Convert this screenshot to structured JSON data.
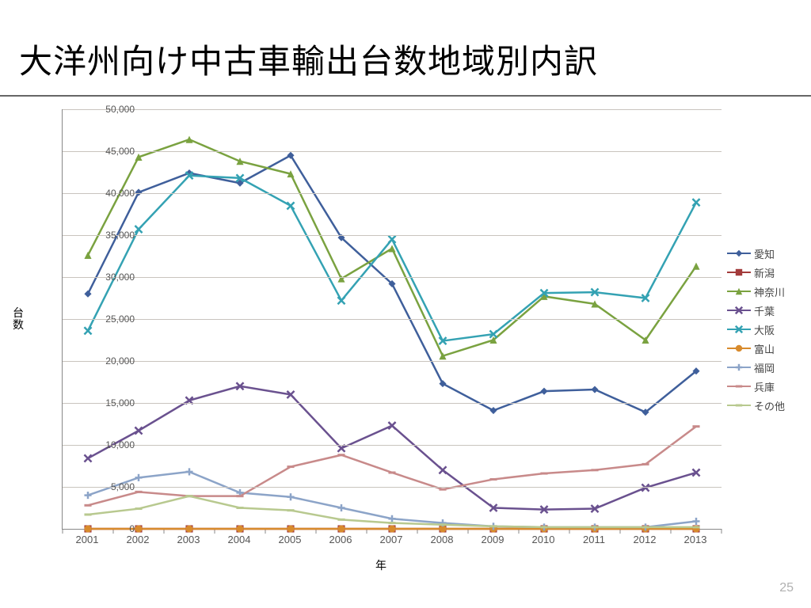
{
  "title": "大洋州向け中古車輸出台数地域別内訳",
  "page_number": "25",
  "chart": {
    "type": "line",
    "x_label": "年",
    "y_label": "台数",
    "background_color": "#ffffff",
    "grid_color": "#c9c4be",
    "axis_color": "#888888",
    "tick_font_color": "#555555",
    "title_fontsize": 42,
    "label_fontsize": 14,
    "tick_fontsize": 12,
    "line_width": 2.5,
    "marker_size": 7,
    "x_values": [
      "2001",
      "2002",
      "2003",
      "2004",
      "2005",
      "2006",
      "2007",
      "2008",
      "2009",
      "2010",
      "2011",
      "2012",
      "2013"
    ],
    "ylim": [
      0,
      50000
    ],
    "ytick_step": 5000,
    "series": [
      {
        "name": "愛知",
        "color": "#3f5f9b",
        "marker": "diamond",
        "y": [
          28000,
          40100,
          42400,
          41200,
          44500,
          34700,
          29200,
          17300,
          14100,
          16400,
          16600,
          13900,
          18800
        ]
      },
      {
        "name": "新潟",
        "color": "#a33b3b",
        "marker": "square",
        "y": [
          0,
          0,
          0,
          0,
          0,
          0,
          0,
          0,
          0,
          0,
          0,
          0,
          0
        ]
      },
      {
        "name": "神奈川",
        "color": "#7aa240",
        "marker": "triangle",
        "y": [
          32600,
          44300,
          46400,
          43800,
          42300,
          29800,
          33400,
          20600,
          22500,
          27700,
          26800,
          22500,
          31300
        ]
      },
      {
        "name": "千葉",
        "color": "#6a518f",
        "marker": "x",
        "y": [
          8400,
          11700,
          15300,
          17000,
          16000,
          9600,
          12300,
          7000,
          2500,
          2300,
          2400,
          4900,
          6700
        ]
      },
      {
        "name": "大阪",
        "color": "#34a2b3",
        "marker": "x",
        "y": [
          23600,
          35700,
          42100,
          41800,
          38500,
          27200,
          34500,
          22400,
          23200,
          28100,
          28200,
          27500,
          38900
        ]
      },
      {
        "name": "富山",
        "color": "#d88b2d",
        "marker": "circle",
        "y": [
          0,
          0,
          0,
          0,
          0,
          0,
          0,
          0,
          0,
          0,
          0,
          0,
          0
        ]
      },
      {
        "name": "福岡",
        "color": "#8ca4c8",
        "marker": "plus",
        "y": [
          4000,
          6100,
          6800,
          4300,
          3800,
          2500,
          1200,
          700,
          300,
          200,
          200,
          200,
          900
        ]
      },
      {
        "name": "兵庫",
        "color": "#c88a8a",
        "marker": "dash",
        "y": [
          2800,
          4400,
          3900,
          3900,
          7400,
          8800,
          6700,
          4700,
          5900,
          6600,
          7000,
          7700,
          12200
        ]
      },
      {
        "name": "その他",
        "color": "#b8c98f",
        "marker": "dash",
        "y": [
          1700,
          2400,
          3900,
          2500,
          2200,
          1100,
          700,
          500,
          300,
          200,
          200,
          200,
          200
        ]
      }
    ]
  }
}
